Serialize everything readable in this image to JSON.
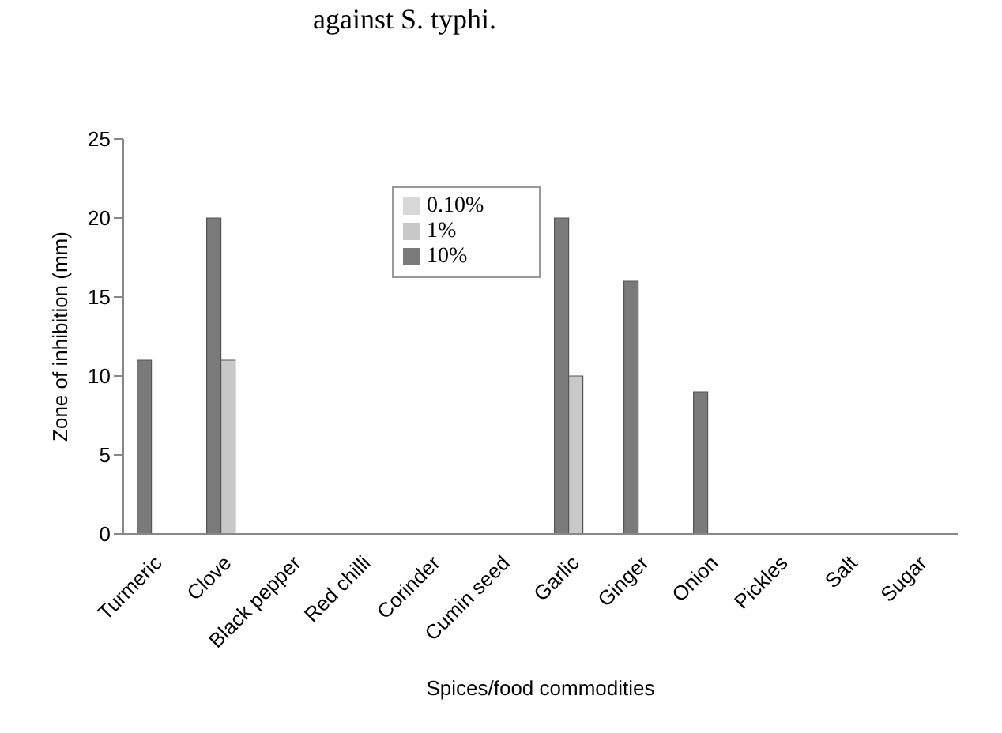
{
  "chart_data": {
    "type": "bar",
    "title": "against S. typhi.",
    "xlabel": "Spices/food commodities",
    "ylabel": "Zone of inhibition (mm)",
    "categories": [
      "Turmeric",
      "Clove",
      "Black pepper",
      "Red chilli",
      "Corinder",
      "Cumin seed",
      "Garlic",
      "Ginger",
      "Onion",
      "Pickles",
      "Salt",
      "Sugar"
    ],
    "series": [
      {
        "name": "10%",
        "color": "#7a7a7a",
        "values": [
          11,
          20,
          0,
          0,
          0,
          0,
          20,
          16,
          9,
          0,
          0,
          0
        ]
      },
      {
        "name": "1%",
        "color": "#c8c8c8",
        "values": [
          0,
          11,
          0,
          0,
          0,
          0,
          10,
          0,
          0,
          0,
          0,
          0
        ]
      },
      {
        "name": "0.10%",
        "color": "#d8d8d8",
        "values": [
          0,
          0,
          0,
          0,
          0,
          0,
          0,
          0,
          0,
          0,
          0,
          0
        ]
      }
    ],
    "ylim": [
      0,
      25
    ],
    "yticks": [
      0,
      5,
      10,
      15,
      20,
      25
    ],
    "grid": false,
    "legend": "top"
  }
}
